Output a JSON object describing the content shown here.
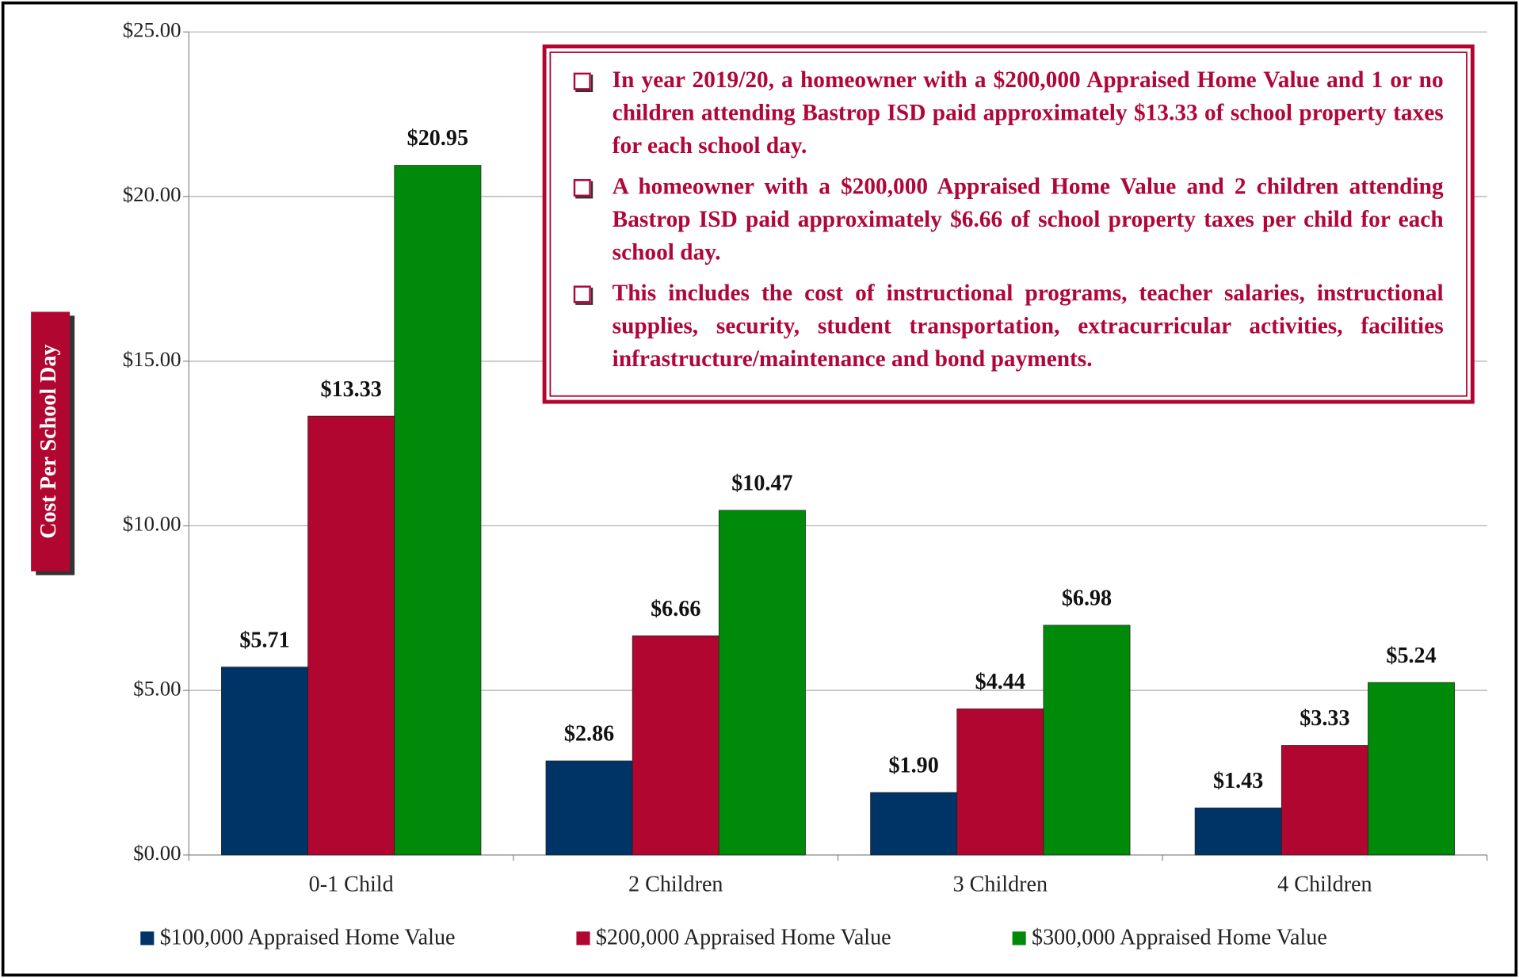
{
  "chart_data": {
    "type": "bar",
    "y_label": "Cost Per School Day",
    "categories": [
      "0-1 Child",
      "2 Children",
      "3 Children",
      "4 Children"
    ],
    "series": [
      {
        "name": "$100,000 Appraised Home Value",
        "color": "#003366",
        "values": [
          5.71,
          2.86,
          1.9,
          1.43
        ],
        "value_labels": [
          "$5.71",
          "$2.86",
          "$1.90",
          "$1.43"
        ]
      },
      {
        "name": "$200,000 Appraised Home Value",
        "color": "#b0062f",
        "values": [
          13.33,
          6.66,
          4.44,
          3.33
        ],
        "value_labels": [
          "$13.33",
          "$6.66",
          "$4.44",
          "$3.33"
        ]
      },
      {
        "name": "$300,000 Appraised Home Value",
        "color": "#008a0a",
        "values": [
          20.95,
          10.47,
          6.98,
          5.24
        ],
        "value_labels": [
          "$20.95",
          "$10.47",
          "$6.98",
          "$5.24"
        ]
      }
    ],
    "ylim": [
      0,
      25
    ],
    "yticks": [
      {
        "value": 0,
        "label": "$0.00"
      },
      {
        "value": 5,
        "label": "$5.00"
      },
      {
        "value": 10,
        "label": "$10.00"
      },
      {
        "value": 15,
        "label": "$15.00"
      },
      {
        "value": 20,
        "label": "$20.00"
      },
      {
        "value": 25,
        "label": "$25.00"
      }
    ],
    "grid": true,
    "legend": "bottom",
    "annotations": [
      "In year 2019/20, a homeowner with a $200,000 Appraised Home Value and 1 or no children attending Bastrop ISD paid approximately $13.33 of school property taxes for each school day.",
      "A homeowner with a $200,000 Appraised Home Value and 2 children attending Bastrop ISD paid approximately $6.66 of school property taxes per child for each school day.",
      "This includes the cost of instructional programs, teacher salaries, instructional supplies, security, student transportation, extracurricular activities, facilities infrastructure/maintenance and bond payments."
    ]
  }
}
